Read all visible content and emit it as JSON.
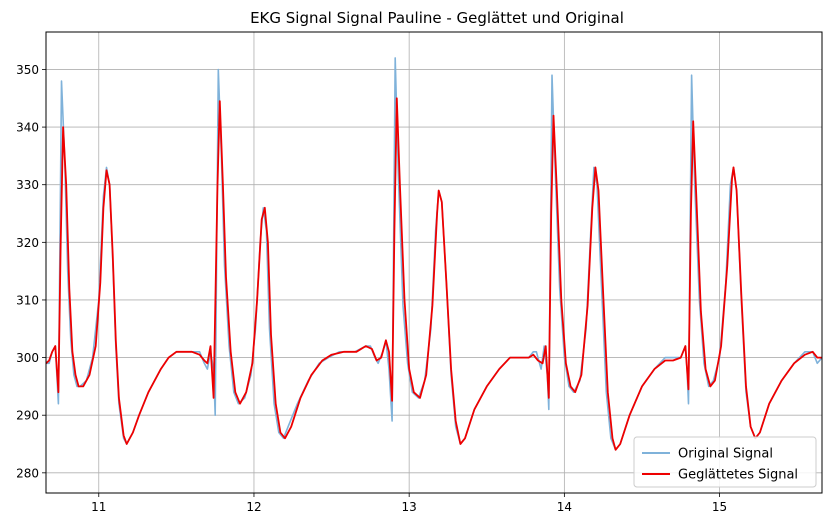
{
  "chart_data": {
    "type": "line",
    "title": "EKG Signal Signal Pauline - Geglättet und Original",
    "xlabel": "",
    "ylabel": "",
    "xlim": [
      10.66,
      15.66
    ],
    "ylim": [
      276.5,
      356.5
    ],
    "xticks": [
      11,
      12,
      13,
      14,
      15
    ],
    "yticks": [
      280,
      290,
      300,
      310,
      320,
      330,
      340,
      350
    ],
    "xtick_labels": [
      "11",
      "12",
      "13",
      "14",
      "15"
    ],
    "ytick_labels": [
      "280",
      "290",
      "300",
      "310",
      "320",
      "330",
      "340",
      "350"
    ],
    "grid": true,
    "legend": {
      "location": "lower right",
      "entries": [
        "Original Signal",
        "Geglättetes Signal"
      ]
    },
    "series": [
      {
        "name": "Original Signal",
        "color": "#7fb2da",
        "points": [
          [
            10.66,
            299
          ],
          [
            10.68,
            299
          ],
          [
            10.7,
            301
          ],
          [
            10.72,
            302
          ],
          [
            10.74,
            292
          ],
          [
            10.76,
            348
          ],
          [
            10.78,
            335
          ],
          [
            10.8,
            315
          ],
          [
            10.82,
            303
          ],
          [
            10.84,
            297
          ],
          [
            10.86,
            295
          ],
          [
            10.88,
            295
          ],
          [
            10.92,
            296
          ],
          [
            10.96,
            300
          ],
          [
            11.0,
            310
          ],
          [
            11.03,
            328
          ],
          [
            11.05,
            333
          ],
          [
            11.07,
            330
          ],
          [
            11.09,
            317
          ],
          [
            11.11,
            302
          ],
          [
            11.13,
            292
          ],
          [
            11.16,
            286
          ],
          [
            11.18,
            285
          ],
          [
            11.22,
            287
          ],
          [
            11.26,
            290
          ],
          [
            11.32,
            294
          ],
          [
            11.4,
            298
          ],
          [
            11.45,
            300
          ],
          [
            11.5,
            301
          ],
          [
            11.55,
            301
          ],
          [
            11.6,
            301
          ],
          [
            11.65,
            301
          ],
          [
            11.68,
            299
          ],
          [
            11.7,
            298
          ],
          [
            11.72,
            301
          ],
          [
            11.74,
            298
          ],
          [
            11.75,
            290
          ],
          [
            11.77,
            350
          ],
          [
            11.79,
            335
          ],
          [
            11.81,
            316
          ],
          [
            11.84,
            302
          ],
          [
            11.87,
            294
          ],
          [
            11.9,
            292
          ],
          [
            11.94,
            293
          ],
          [
            11.98,
            297
          ],
          [
            12.01,
            305
          ],
          [
            12.04,
            320
          ],
          [
            12.06,
            326
          ],
          [
            12.08,
            322
          ],
          [
            12.1,
            305
          ],
          [
            12.13,
            292
          ],
          [
            12.16,
            287
          ],
          [
            12.19,
            286
          ],
          [
            12.22,
            288
          ],
          [
            12.28,
            292
          ],
          [
            12.35,
            296
          ],
          [
            12.42,
            299
          ],
          [
            12.48,
            300
          ],
          [
            12.55,
            301
          ],
          [
            12.65,
            301
          ],
          [
            12.72,
            302
          ],
          [
            12.75,
            302
          ],
          [
            12.78,
            300
          ],
          [
            12.8,
            299
          ],
          [
            12.83,
            301
          ],
          [
            12.85,
            303
          ],
          [
            12.87,
            298
          ],
          [
            12.89,
            289
          ],
          [
            12.91,
            352
          ],
          [
            12.93,
            332
          ],
          [
            12.96,
            309
          ],
          [
            12.99,
            299
          ],
          [
            13.02,
            294
          ],
          [
            13.06,
            293
          ],
          [
            13.1,
            296
          ],
          [
            13.14,
            305
          ],
          [
            13.17,
            322
          ],
          [
            13.19,
            329
          ],
          [
            13.21,
            327
          ],
          [
            13.24,
            313
          ],
          [
            13.27,
            297
          ],
          [
            13.3,
            288
          ],
          [
            13.33,
            285
          ],
          [
            13.36,
            286
          ],
          [
            13.42,
            291
          ],
          [
            13.5,
            295
          ],
          [
            13.58,
            298
          ],
          [
            13.65,
            300
          ],
          [
            13.72,
            300
          ],
          [
            13.77,
            300
          ],
          [
            13.8,
            301
          ],
          [
            13.82,
            301
          ],
          [
            13.85,
            298
          ],
          [
            13.87,
            302
          ],
          [
            13.89,
            297
          ],
          [
            13.9,
            291
          ],
          [
            13.92,
            349
          ],
          [
            13.94,
            333
          ],
          [
            13.97,
            312
          ],
          [
            14.0,
            300
          ],
          [
            14.03,
            295
          ],
          [
            14.06,
            294
          ],
          [
            14.1,
            296
          ],
          [
            14.14,
            305
          ],
          [
            14.17,
            322
          ],
          [
            14.19,
            333
          ],
          [
            14.21,
            330
          ],
          [
            14.24,
            312
          ],
          [
            14.27,
            294
          ],
          [
            14.3,
            286
          ],
          [
            14.33,
            284
          ],
          [
            14.36,
            285
          ],
          [
            14.42,
            290
          ],
          [
            14.5,
            295
          ],
          [
            14.58,
            298
          ],
          [
            14.65,
            300
          ],
          [
            14.7,
            300
          ],
          [
            14.75,
            300
          ],
          [
            14.78,
            302
          ],
          [
            14.79,
            298
          ],
          [
            14.8,
            292
          ],
          [
            14.82,
            349
          ],
          [
            14.84,
            330
          ],
          [
            14.87,
            310
          ],
          [
            14.9,
            299
          ],
          [
            14.93,
            295
          ],
          [
            14.96,
            296
          ],
          [
            15.0,
            300
          ],
          [
            15.04,
            313
          ],
          [
            15.07,
            330
          ],
          [
            15.09,
            333
          ],
          [
            15.11,
            329
          ],
          [
            15.14,
            310
          ],
          [
            15.17,
            294
          ],
          [
            15.2,
            288
          ],
          [
            15.23,
            286
          ],
          [
            15.26,
            287
          ],
          [
            15.32,
            292
          ],
          [
            15.4,
            296
          ],
          [
            15.48,
            299
          ],
          [
            15.55,
            301
          ],
          [
            15.6,
            301
          ],
          [
            15.63,
            299
          ],
          [
            15.66,
            300
          ]
        ]
      },
      {
        "name": "Geglättetes Signal",
        "color": "#ee0000",
        "points": [
          [
            10.66,
            299
          ],
          [
            10.68,
            299.5
          ],
          [
            10.7,
            301
          ],
          [
            10.72,
            302
          ],
          [
            10.74,
            294
          ],
          [
            10.755,
            320
          ],
          [
            10.77,
            340
          ],
          [
            10.79,
            330
          ],
          [
            10.81,
            312
          ],
          [
            10.83,
            301
          ],
          [
            10.85,
            297
          ],
          [
            10.87,
            295
          ],
          [
            10.9,
            295
          ],
          [
            10.94,
            297
          ],
          [
            10.98,
            302
          ],
          [
            11.01,
            313
          ],
          [
            11.03,
            326
          ],
          [
            11.05,
            332.5
          ],
          [
            11.07,
            330
          ],
          [
            11.09,
            318
          ],
          [
            11.11,
            303
          ],
          [
            11.13,
            293
          ],
          [
            11.16,
            286.5
          ],
          [
            11.18,
            285
          ],
          [
            11.22,
            287
          ],
          [
            11.26,
            290
          ],
          [
            11.32,
            294
          ],
          [
            11.4,
            298
          ],
          [
            11.45,
            300
          ],
          [
            11.5,
            301
          ],
          [
            11.55,
            301
          ],
          [
            11.6,
            301
          ],
          [
            11.65,
            300.5
          ],
          [
            11.68,
            299.5
          ],
          [
            11.7,
            299
          ],
          [
            11.72,
            302
          ],
          [
            11.74,
            293
          ],
          [
            11.765,
            330
          ],
          [
            11.78,
            344.5
          ],
          [
            11.8,
            330
          ],
          [
            11.82,
            314
          ],
          [
            11.85,
            301
          ],
          [
            11.88,
            294
          ],
          [
            11.91,
            292
          ],
          [
            11.95,
            294
          ],
          [
            11.99,
            299
          ],
          [
            12.02,
            310
          ],
          [
            12.05,
            324
          ],
          [
            12.07,
            326
          ],
          [
            12.09,
            320
          ],
          [
            12.11,
            304
          ],
          [
            12.14,
            292
          ],
          [
            12.17,
            287
          ],
          [
            12.2,
            286
          ],
          [
            12.24,
            288
          ],
          [
            12.3,
            293
          ],
          [
            12.37,
            297
          ],
          [
            12.44,
            299.5
          ],
          [
            12.5,
            300.5
          ],
          [
            12.58,
            301
          ],
          [
            12.66,
            301
          ],
          [
            12.72,
            302
          ],
          [
            12.76,
            301.5
          ],
          [
            12.79,
            299.5
          ],
          [
            12.82,
            300
          ],
          [
            12.85,
            303
          ],
          [
            12.87,
            301
          ],
          [
            12.89,
            292.5
          ],
          [
            12.905,
            322
          ],
          [
            12.92,
            345
          ],
          [
            12.94,
            330
          ],
          [
            12.97,
            310
          ],
          [
            13.0,
            298
          ],
          [
            13.03,
            294
          ],
          [
            13.07,
            293
          ],
          [
            13.11,
            297
          ],
          [
            13.15,
            309
          ],
          [
            13.18,
            325
          ],
          [
            13.19,
            329
          ],
          [
            13.21,
            327
          ],
          [
            13.24,
            313
          ],
          [
            13.27,
            298
          ],
          [
            13.3,
            289
          ],
          [
            13.33,
            285
          ],
          [
            13.36,
            286
          ],
          [
            13.42,
            291
          ],
          [
            13.5,
            295
          ],
          [
            13.58,
            298
          ],
          [
            13.65,
            300
          ],
          [
            13.72,
            300
          ],
          [
            13.77,
            300
          ],
          [
            13.8,
            300.5
          ],
          [
            13.83,
            299.5
          ],
          [
            13.86,
            299
          ],
          [
            13.88,
            302
          ],
          [
            13.9,
            293
          ],
          [
            13.915,
            325
          ],
          [
            13.93,
            342
          ],
          [
            13.95,
            330
          ],
          [
            13.98,
            310
          ],
          [
            14.01,
            299
          ],
          [
            14.04,
            295
          ],
          [
            14.07,
            294
          ],
          [
            14.11,
            297
          ],
          [
            14.15,
            309
          ],
          [
            14.18,
            326
          ],
          [
            14.2,
            333
          ],
          [
            14.22,
            329
          ],
          [
            14.25,
            311
          ],
          [
            14.28,
            294
          ],
          [
            14.31,
            286
          ],
          [
            14.33,
            284
          ],
          [
            14.36,
            285
          ],
          [
            14.42,
            290
          ],
          [
            14.5,
            295
          ],
          [
            14.58,
            298
          ],
          [
            14.65,
            299.5
          ],
          [
            14.7,
            299.5
          ],
          [
            14.75,
            300
          ],
          [
            14.78,
            302
          ],
          [
            14.8,
            294.5
          ],
          [
            14.815,
            325
          ],
          [
            14.83,
            341
          ],
          [
            14.85,
            328
          ],
          [
            14.88,
            308
          ],
          [
            14.91,
            298
          ],
          [
            14.94,
            295
          ],
          [
            14.97,
            296
          ],
          [
            15.01,
            302
          ],
          [
            15.05,
            316
          ],
          [
            15.08,
            331
          ],
          [
            15.09,
            333
          ],
          [
            15.11,
            329
          ],
          [
            15.14,
            311
          ],
          [
            15.17,
            295
          ],
          [
            15.2,
            288
          ],
          [
            15.23,
            286
          ],
          [
            15.26,
            287
          ],
          [
            15.32,
            292
          ],
          [
            15.4,
            296
          ],
          [
            15.48,
            299
          ],
          [
            15.55,
            300.5
          ],
          [
            15.6,
            301
          ],
          [
            15.63,
            300
          ],
          [
            15.66,
            300
          ]
        ]
      }
    ]
  }
}
